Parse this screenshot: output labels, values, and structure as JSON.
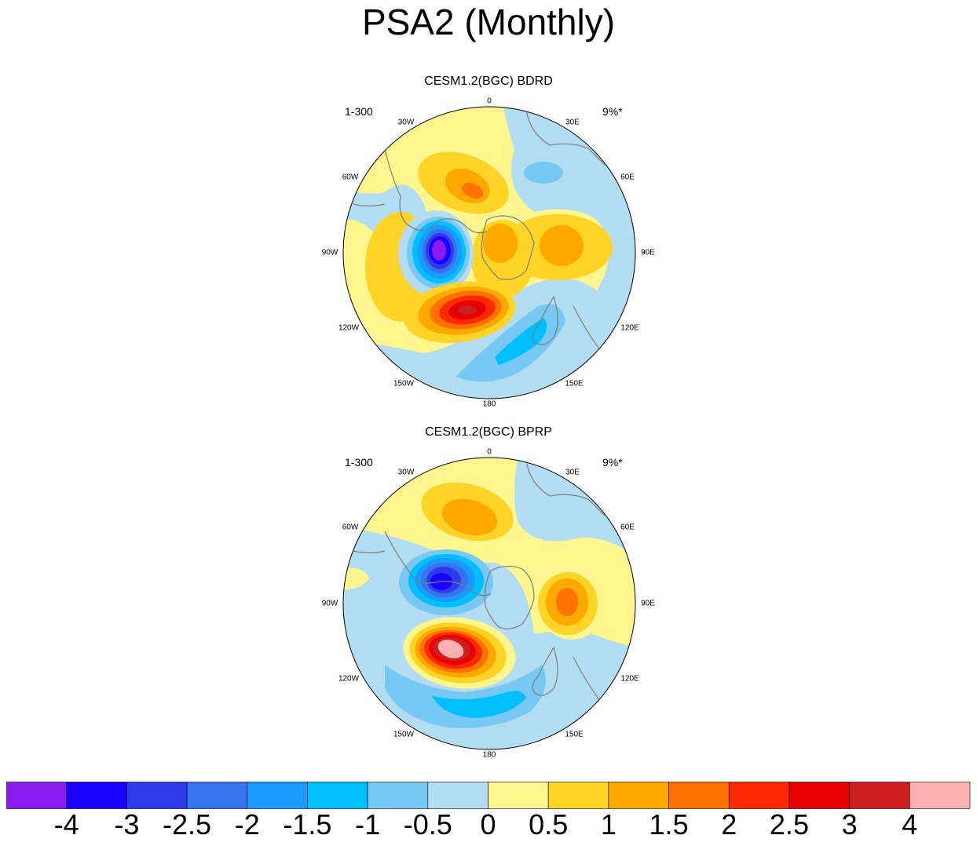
{
  "figure_title": "PSA2 (Monthly)",
  "panels": [
    {
      "title": "CESM1.2(BGC) BDRD",
      "left_label": "1-300",
      "right_label": "9%*"
    },
    {
      "title": "CESM1.2(BGC) BPRP",
      "left_label": "1-300",
      "right_label": "9%*"
    }
  ],
  "longitude_labels": [
    "0",
    "30E",
    "60E",
    "90E",
    "120E",
    "150E",
    "180",
    "150W",
    "120W",
    "90W",
    "60W",
    "30W"
  ],
  "colorbar": {
    "colors": [
      "#8a1cf0",
      "#1a00ff",
      "#2d3ce8",
      "#3673ec",
      "#1a99ff",
      "#00bfff",
      "#77c8f2",
      "#b3ddf2",
      "#fff68f",
      "#ffd426",
      "#ffa800",
      "#ff7200",
      "#ff2800",
      "#e60000",
      "#cd1f1f",
      "#ffb1b1"
    ],
    "labels": [
      "-4",
      "-3",
      "-2.5",
      "-2",
      "-1.5",
      "-1",
      "-0.5",
      "0",
      "0.5",
      "1",
      "1.5",
      "2",
      "2.5",
      "3",
      "4"
    ]
  }
}
